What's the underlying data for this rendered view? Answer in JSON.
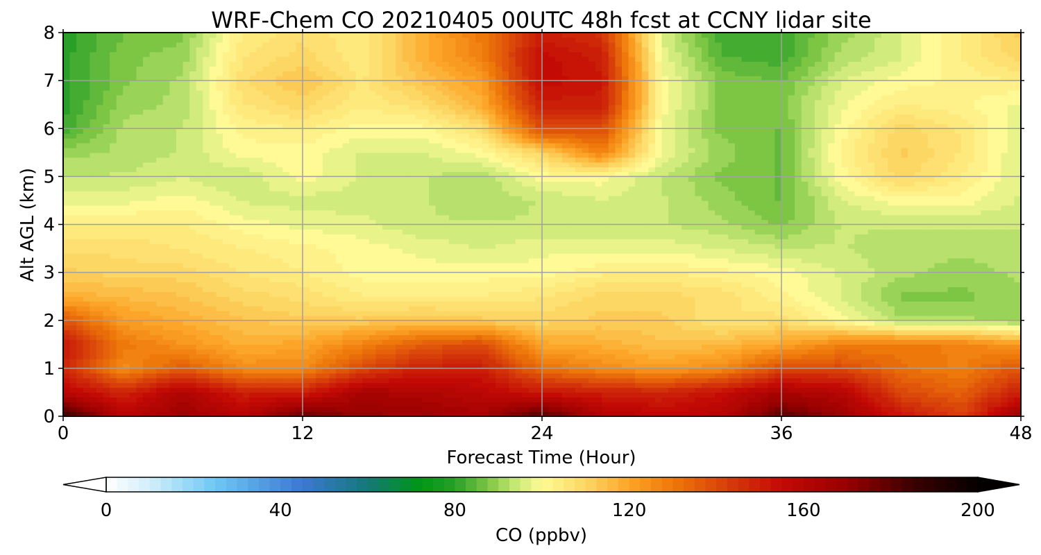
{
  "chart_data": {
    "type": "heatmap",
    "title": "WRF-Chem CO  20210405 00UTC 48h fcst at CCNY lidar site",
    "xlabel": "Forecast Time (Hour)",
    "ylabel": "Alt AGL (km)",
    "xlim": [
      0,
      48
    ],
    "ylim": [
      0,
      8
    ],
    "xticks": [
      0,
      12,
      24,
      36,
      48
    ],
    "yticks": [
      0,
      1,
      2,
      3,
      4,
      5,
      6,
      7,
      8
    ],
    "grid": true,
    "x": [
      0,
      3,
      6,
      9,
      12,
      15,
      18,
      21,
      24,
      27,
      30,
      33,
      36,
      39,
      42,
      45,
      48
    ],
    "y": [
      0,
      0.5,
      1,
      1.5,
      2,
      2.5,
      3,
      3.5,
      4,
      4.5,
      5,
      5.5,
      6,
      6.5,
      7,
      7.5,
      8
    ],
    "z": [
      [
        188,
        160,
        168,
        160,
        178,
        170,
        168,
        165,
        182,
        162,
        158,
        160,
        180,
        168,
        152,
        142,
        168
      ],
      [
        158,
        148,
        162,
        150,
        150,
        164,
        162,
        158,
        152,
        150,
        148,
        154,
        164,
        160,
        140,
        135,
        150
      ],
      [
        148,
        125,
        136,
        126,
        126,
        140,
        150,
        150,
        132,
        126,
        122,
        126,
        140,
        140,
        132,
        128,
        138
      ],
      [
        152,
        130,
        124,
        118,
        120,
        128,
        136,
        140,
        120,
        118,
        114,
        116,
        120,
        128,
        130,
        128,
        122
      ],
      [
        138,
        122,
        118,
        114,
        112,
        112,
        114,
        112,
        110,
        112,
        112,
        106,
        108,
        100,
        92,
        92,
        90
      ],
      [
        118,
        116,
        114,
        110,
        108,
        104,
        104,
        104,
        106,
        110,
        110,
        108,
        102,
        96,
        88,
        88,
        90
      ],
      [
        112,
        110,
        110,
        106,
        104,
        100,
        100,
        100,
        100,
        103,
        104,
        102,
        100,
        96,
        92,
        90,
        92
      ],
      [
        108,
        108,
        106,
        104,
        102,
        100,
        98,
        96,
        98,
        98,
        98,
        96,
        94,
        94,
        92,
        92,
        92
      ],
      [
        104,
        104,
        104,
        100,
        98,
        97,
        94,
        94,
        94,
        94,
        94,
        92,
        88,
        94,
        94,
        94,
        94
      ],
      [
        98,
        98,
        100,
        96,
        95,
        95,
        94,
        92,
        94,
        96,
        94,
        90,
        86,
        96,
        100,
        100,
        96
      ],
      [
        94,
        94,
        96,
        94,
        100,
        96,
        94,
        92,
        100,
        100,
        94,
        88,
        86,
        100,
        110,
        104,
        96
      ],
      [
        90,
        92,
        94,
        100,
        100,
        96,
        96,
        100,
        110,
        128,
        98,
        90,
        86,
        102,
        112,
        106,
        96
      ],
      [
        82,
        92,
        94,
        102,
        104,
        100,
        100,
        108,
        140,
        140,
        98,
        88,
        86,
        100,
        110,
        106,
        96
      ],
      [
        80,
        90,
        92,
        106,
        110,
        104,
        108,
        118,
        150,
        150,
        100,
        88,
        88,
        98,
        104,
        102,
        98
      ],
      [
        80,
        88,
        92,
        108,
        114,
        106,
        114,
        122,
        155,
        152,
        100,
        88,
        86,
        96,
        100,
        102,
        104
      ],
      [
        80,
        88,
        90,
        106,
        110,
        104,
        118,
        128,
        155,
        150,
        98,
        84,
        82,
        92,
        96,
        104,
        110
      ],
      [
        80,
        86,
        88,
        104,
        108,
        104,
        118,
        130,
        150,
        145,
        96,
        82,
        82,
        90,
        96,
        104,
        112
      ]
    ],
    "colorbar": {
      "label": "CO  (ppbv)",
      "ticks": [
        0,
        40,
        80,
        120,
        160,
        200
      ],
      "range": [
        0,
        200
      ],
      "extend": "both"
    }
  }
}
